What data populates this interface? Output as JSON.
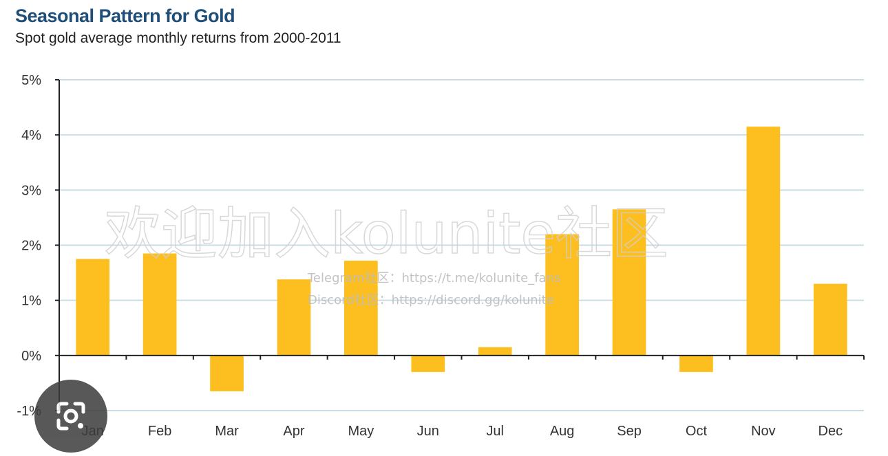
{
  "header": {
    "title": "Seasonal Pattern for Gold",
    "subtitle": "Spot gold average monthly returns from 2000-2011"
  },
  "watermark": {
    "main": "欢迎加入kolunite社区",
    "telegram": "Telegram社区：https://t.me/kolunite_fans",
    "discord": "Discord社区：https://discord.gg/kolunite"
  },
  "colors": {
    "bar": "#fdbf1f",
    "grid": "#c8dde6",
    "axis": "#222222",
    "title": "#1f4e79"
  },
  "chart_data": {
    "type": "bar",
    "title": "Seasonal Pattern for Gold",
    "subtitle": "Spot gold average monthly returns from 2000-2011",
    "categories": [
      "Jan",
      "Feb",
      "Mar",
      "Apr",
      "May",
      "Jun",
      "Jul",
      "Aug",
      "Sep",
      "Oct",
      "Nov",
      "Dec"
    ],
    "values": [
      1.75,
      1.85,
      -0.65,
      1.38,
      1.72,
      -0.3,
      0.15,
      2.2,
      2.65,
      -0.3,
      4.15,
      1.3
    ],
    "unit": "%",
    "ylim": [
      -1,
      5
    ],
    "yticks": [
      -1,
      0,
      1,
      2,
      3,
      4,
      5
    ],
    "ytick_labels": [
      "-1%",
      "0%",
      "1%",
      "2%",
      "3%",
      "4%",
      "5%"
    ],
    "grid": true,
    "legend": "none"
  },
  "icons": {
    "lens": "google-lens-icon"
  }
}
